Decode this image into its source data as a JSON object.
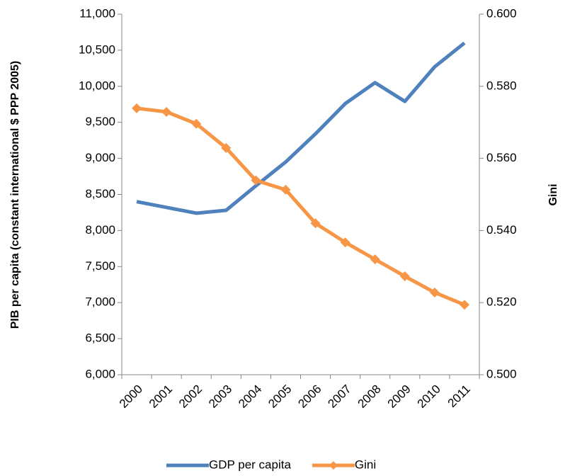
{
  "chart_data": {
    "type": "line",
    "y_label": "PIB per capita (constant international $ PPP 2005)",
    "y2_label": "Gini",
    "categories": [
      "2000",
      "2001",
      "2002",
      "2003",
      "2004",
      "2005",
      "2006",
      "2007",
      "2008",
      "2009",
      "2010",
      "2011"
    ],
    "series": [
      {
        "name": "GDP per capita",
        "color": "#4f81bd",
        "values": [
          8400,
          8320,
          8240,
          8280,
          8620,
          8950,
          9340,
          9760,
          10050,
          9790,
          10270,
          10600
        ]
      },
      {
        "name": "Gini",
        "color": "#f79646",
        "axis": "y2",
        "marker": "diamond",
        "values": [
          0.5739,
          0.5729,
          0.5696,
          0.5629,
          0.5539,
          0.5513,
          0.542,
          0.5367,
          0.532,
          0.5273,
          0.5228,
          0.5194
        ]
      }
    ],
    "ylim": [
      6000,
      11000
    ],
    "yticks": [
      {
        "value": 6000,
        "label": "6,000"
      },
      {
        "value": 6500,
        "label": "6,500"
      },
      {
        "value": 7000,
        "label": "7,000"
      },
      {
        "value": 7500,
        "label": "7,500"
      },
      {
        "value": 8000,
        "label": "8,000"
      },
      {
        "value": 8500,
        "label": "8,500"
      },
      {
        "value": 9000,
        "label": "9,000"
      },
      {
        "value": 9500,
        "label": "9,500"
      },
      {
        "value": 10000,
        "label": "10,000"
      },
      {
        "value": 10500,
        "label": "10,500"
      },
      {
        "value": 11000,
        "label": "11,000"
      }
    ],
    "y2lim": [
      0.5,
      0.6
    ],
    "y2ticks": [
      {
        "value": 0.5,
        "label": "0.500"
      },
      {
        "value": 0.52,
        "label": "0.520"
      },
      {
        "value": 0.54,
        "label": "0.540"
      },
      {
        "value": 0.56,
        "label": "0.560"
      },
      {
        "value": 0.58,
        "label": "0.580"
      },
      {
        "value": 0.6,
        "label": "0.600"
      }
    ],
    "legend": "bottom"
  }
}
